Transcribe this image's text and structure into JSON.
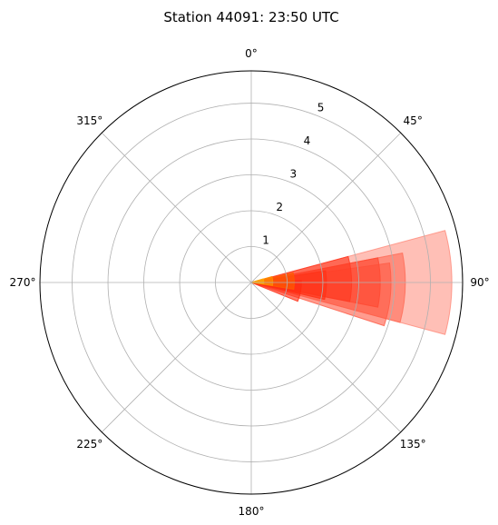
{
  "chart_data": {
    "type": "polar-bar",
    "title": "Station 44091: 23:50 UTC",
    "theta_zero": "N",
    "theta_direction": "clockwise",
    "angle_tick_labels": [
      "0°",
      "45°",
      "90°",
      "135°",
      "180°",
      "225°",
      "270°",
      "315°"
    ],
    "radial_tick_labels": [
      "1",
      "2",
      "3",
      "4",
      "5"
    ],
    "radial_ticks": [
      1,
      2,
      3,
      4,
      5
    ],
    "rlim": [
      0,
      5.9
    ],
    "grid": true,
    "bars": [
      {
        "theta_center": 90,
        "width": 30,
        "r": 5.6,
        "color": "#ff7f6e",
        "opacity": 0.5
      },
      {
        "theta_center": 92,
        "width": 26,
        "r": 4.3,
        "color": "#ff6a55",
        "opacity": 0.6
      },
      {
        "theta_center": 95,
        "width": 26,
        "r": 3.9,
        "color": "#ff5a44",
        "opacity": 0.6
      },
      {
        "theta_center": 90,
        "width": 22,
        "r": 3.6,
        "color": "#ff4a33",
        "opacity": 0.65
      },
      {
        "theta_center": 88,
        "width": 26,
        "r": 2.8,
        "color": "#ff3a22",
        "opacity": 0.65
      },
      {
        "theta_center": 92,
        "width": 22,
        "r": 2.1,
        "color": "#ff3318",
        "opacity": 0.7
      },
      {
        "theta_center": 100,
        "width": 24,
        "r": 1.4,
        "color": "#ff2a10",
        "opacity": 0.6
      },
      {
        "theta_center": 88,
        "width": 22,
        "r": 1.2,
        "color": "#ff5a00",
        "opacity": 0.7
      },
      {
        "theta_center": 86,
        "width": 24,
        "r": 0.6,
        "color": "#ff8a00",
        "opacity": 0.75
      },
      {
        "theta_center": 84,
        "width": 22,
        "r": 0.35,
        "color": "#ffa500",
        "opacity": 0.85
      }
    ]
  }
}
